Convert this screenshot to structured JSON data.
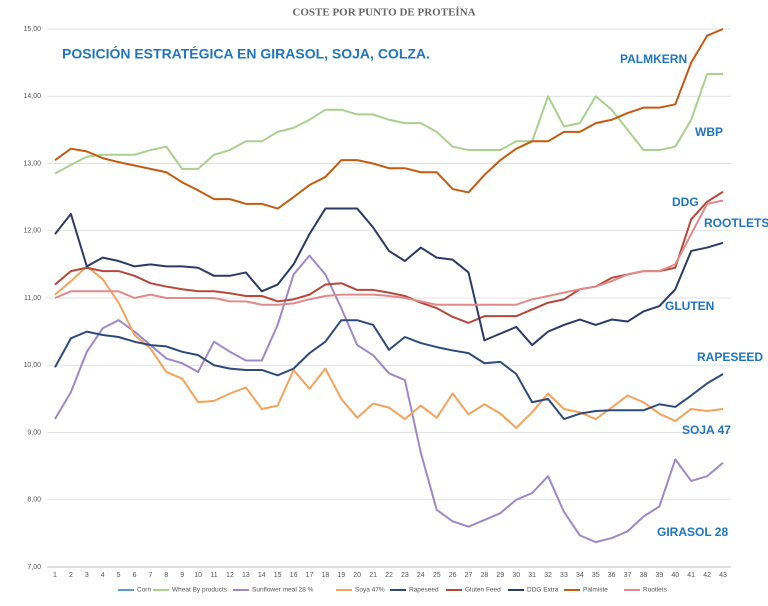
{
  "chart_data": {
    "type": "line",
    "title": "COSTE POR PUNTO DE PROTEÍNA",
    "annotations": [
      "POSICIÓN ESTRATÉGICA EN GIRASOL, SOJA, COLZA.",
      "PALMKERN",
      "WBP",
      "DDG",
      "ROOTLETS",
      "GLUTEN",
      "RAPESEED",
      "SOJA 47",
      "GIRASOL 28"
    ],
    "categories": [
      "1",
      "2",
      "3",
      "4",
      "5",
      "6",
      "7",
      "8",
      "9",
      "10",
      "11",
      "12",
      "13",
      "14",
      "15",
      "16",
      "17",
      "18",
      "19",
      "20",
      "21",
      "22",
      "23",
      "24",
      "25",
      "26",
      "27",
      "28",
      "29",
      "30",
      "31",
      "32",
      "33",
      "34",
      "35",
      "36",
      "37",
      "38",
      "39",
      "40",
      "41",
      "42",
      "43"
    ],
    "ylim": [
      7,
      15
    ],
    "yticks": [
      {
        "value": 7,
        "label": "7,00"
      },
      {
        "value": 8,
        "label": "8,00"
      },
      {
        "value": 9,
        "label": "9,00"
      },
      {
        "value": 10,
        "label": "10,00"
      },
      {
        "value": 11,
        "label": "11,00"
      },
      {
        "value": 12,
        "label": "12,00"
      },
      {
        "value": 13,
        "label": "13,00"
      },
      {
        "value": 14,
        "label": "14,00"
      },
      {
        "value": 15,
        "label": "15,00"
      }
    ],
    "grid": true,
    "legend": "bottom",
    "series": [
      {
        "name": "Corn",
        "color": "#5b9bd5",
        "values": [
          null,
          null,
          null,
          null,
          null,
          null,
          null,
          null,
          null,
          null,
          null,
          null,
          null,
          null,
          null,
          null,
          null,
          null,
          null,
          null,
          null,
          null,
          null,
          null,
          null,
          null,
          null,
          null,
          null,
          null,
          null,
          null,
          null,
          null,
          null,
          null,
          null,
          null,
          null,
          null,
          null,
          null,
          null
        ]
      },
      {
        "name": "Wheat By products",
        "color": "#a9d18e",
        "values": [
          12.85,
          12.98,
          13.1,
          13.13,
          13.13,
          13.13,
          13.2,
          13.25,
          12.92,
          12.92,
          13.13,
          13.2,
          13.33,
          13.33,
          13.47,
          13.53,
          13.65,
          13.8,
          13.8,
          13.73,
          13.73,
          13.65,
          13.6,
          13.6,
          13.47,
          13.25,
          13.2,
          13.2,
          13.2,
          13.33,
          13.33,
          14.0,
          13.55,
          13.6,
          14.0,
          13.8,
          13.5,
          13.2,
          13.2,
          13.25,
          13.65,
          14.33,
          14.33
        ]
      },
      {
        "name": "Sunflower meal 28 %",
        "color": "#9e88c9",
        "values": [
          9.2,
          9.6,
          10.2,
          10.55,
          10.67,
          10.5,
          10.3,
          10.1,
          10.03,
          9.9,
          10.35,
          10.2,
          10.07,
          10.07,
          10.6,
          11.35,
          11.63,
          11.35,
          10.85,
          10.3,
          10.15,
          9.88,
          9.78,
          8.7,
          7.85,
          7.68,
          7.6,
          7.7,
          7.8,
          8.0,
          8.1,
          8.35,
          7.82,
          7.47,
          7.37,
          7.43,
          7.53,
          7.75,
          7.9,
          8.6,
          8.28,
          8.35,
          8.55
        ]
      },
      {
        "name": "Soya 47%",
        "color": "#f6a25a",
        "values": [
          11.05,
          11.25,
          11.47,
          11.28,
          10.93,
          10.45,
          10.25,
          9.9,
          9.8,
          9.45,
          9.47,
          9.58,
          9.67,
          9.35,
          9.4,
          9.93,
          9.65,
          9.95,
          9.5,
          9.22,
          9.43,
          9.37,
          9.2,
          9.4,
          9.22,
          9.58,
          9.27,
          9.42,
          9.28,
          9.07,
          9.3,
          9.58,
          9.35,
          9.3,
          9.2,
          9.37,
          9.55,
          9.45,
          9.28,
          9.17,
          9.35,
          9.32,
          9.35
        ]
      },
      {
        "name": "Rapeseed",
        "color": "#2e4a7d",
        "values": [
          9.97,
          10.4,
          10.5,
          10.45,
          10.42,
          10.35,
          10.3,
          10.28,
          10.2,
          10.15,
          10.0,
          9.95,
          9.93,
          9.93,
          9.85,
          9.95,
          10.18,
          10.35,
          10.67,
          10.67,
          10.6,
          10.23,
          10.42,
          10.33,
          10.27,
          10.22,
          10.18,
          10.03,
          10.05,
          9.87,
          9.45,
          9.5,
          9.2,
          9.28,
          9.32,
          9.33,
          9.33,
          9.33,
          9.42,
          9.38,
          9.55,
          9.73,
          9.87
        ]
      },
      {
        "name": "Gluten Feed",
        "color": "#b8473a",
        "values": [
          11.2,
          11.4,
          11.45,
          11.4,
          11.4,
          11.33,
          11.22,
          11.17,
          11.13,
          11.1,
          11.1,
          11.07,
          11.03,
          11.03,
          10.95,
          10.98,
          11.05,
          11.2,
          11.22,
          11.12,
          11.12,
          11.08,
          11.03,
          10.93,
          10.85,
          10.72,
          10.63,
          10.73,
          10.73,
          10.73,
          10.83,
          10.93,
          10.98,
          11.13,
          11.17,
          11.3,
          11.35,
          11.4,
          11.4,
          11.45,
          12.17,
          12.43,
          12.58
        ]
      },
      {
        "name": "DDG Extra",
        "color": "#2b3a67",
        "values": [
          11.95,
          12.25,
          11.47,
          11.6,
          11.55,
          11.47,
          11.5,
          11.47,
          11.47,
          11.45,
          11.33,
          11.33,
          11.38,
          11.1,
          11.2,
          11.5,
          11.95,
          12.33,
          12.33,
          12.33,
          12.05,
          11.7,
          11.55,
          11.75,
          11.6,
          11.57,
          11.38,
          10.37,
          10.47,
          10.57,
          10.3,
          10.5,
          10.6,
          10.68,
          10.6,
          10.68,
          10.65,
          10.8,
          10.88,
          11.13,
          11.7,
          11.75,
          11.82
        ]
      },
      {
        "name": "Palmiste",
        "color": "#c55a11",
        "values": [
          13.05,
          13.22,
          13.18,
          13.08,
          13.02,
          12.97,
          12.92,
          12.87,
          12.72,
          12.6,
          12.47,
          12.47,
          12.4,
          12.4,
          12.33,
          12.5,
          12.68,
          12.8,
          13.05,
          13.05,
          13.0,
          12.93,
          12.93,
          12.87,
          12.87,
          12.62,
          12.57,
          12.83,
          13.05,
          13.22,
          13.33,
          13.33,
          13.47,
          13.47,
          13.6,
          13.65,
          13.75,
          13.83,
          13.83,
          13.88,
          14.5,
          14.9,
          15.0
        ]
      },
      {
        "name": "Rootlets",
        "color": "#e08a8a",
        "values": [
          11.0,
          11.1,
          11.1,
          11.1,
          11.1,
          11.0,
          11.05,
          11.0,
          11.0,
          11.0,
          11.0,
          10.95,
          10.95,
          10.9,
          10.9,
          10.92,
          10.98,
          11.03,
          11.05,
          11.05,
          11.05,
          11.03,
          11.0,
          10.95,
          10.9,
          10.9,
          10.9,
          10.9,
          10.9,
          10.9,
          10.98,
          11.03,
          11.08,
          11.13,
          11.17,
          11.25,
          11.35,
          11.4,
          11.4,
          11.5,
          11.95,
          12.4,
          12.45
        ]
      }
    ]
  }
}
